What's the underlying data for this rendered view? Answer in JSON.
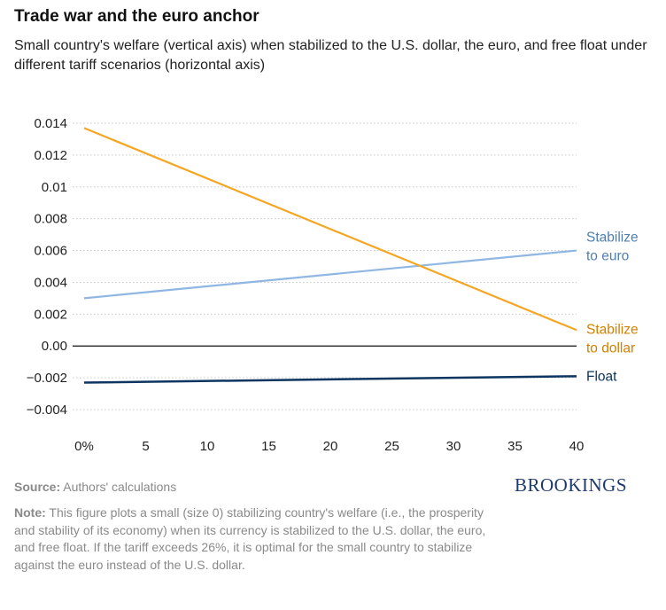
{
  "title": "Trade war and the euro anchor",
  "subtitle": "Small country's welfare (vertical axis) when stabilized to the U.S. dollar, the euro, and free float under different tariff scenarios (horizontal axis)",
  "source": {
    "label": "Source:",
    "text": " Authors' calculations"
  },
  "note": {
    "label": "Note:",
    "text": " This figure plots a small (size 0) stabilizing country's welfare (i.e., the prosperity and stability of its economy) when its currency is stabilized to the U.S. dollar, the euro, and free float. If the tariff exceeds 26%, it is optimal for the small country to stabilize against the euro instead of the U.S. dollar."
  },
  "logo": "BROOKINGS",
  "chart_data": {
    "type": "line",
    "title": "Trade war and the euro anchor",
    "x": [
      0,
      40
    ],
    "xticks": [
      0,
      5,
      10,
      15,
      20,
      25,
      30,
      35,
      40
    ],
    "xtick_labels": [
      "0%",
      "5",
      "10",
      "15",
      "20",
      "25",
      "30",
      "35",
      "40"
    ],
    "xlim": [
      0,
      40
    ],
    "ylim": [
      -0.004,
      0.014
    ],
    "yticks": [
      0.014,
      0.012,
      0.01,
      0.008,
      0.006,
      0.004,
      0.002,
      0.0,
      -0.002,
      -0.004
    ],
    "ytick_labels": [
      "0.014",
      "0.012",
      "0.01",
      "0.008",
      "0.006",
      "0.004",
      "0.002",
      "0.00",
      "−0.002",
      "−0.004"
    ],
    "grid": true,
    "legend": "direct labels at right end of lines",
    "series": [
      {
        "name": "Stabilize to euro",
        "label_lines": [
          "Stabilize",
          "to euro"
        ],
        "color": "#8fb7e2",
        "label_color": "#4f7fb0",
        "values": [
          0.003,
          0.006
        ]
      },
      {
        "name": "Stabilize to dollar",
        "label_lines": [
          "Stabilize",
          "to dollar"
        ],
        "color": "#f5a623",
        "label_color": "#d47f00",
        "values": [
          0.0137,
          0.001
        ]
      },
      {
        "name": "Float",
        "label_lines": [
          "Float"
        ],
        "color": "#0d3561",
        "label_color": "#0d3561",
        "values": [
          -0.0023,
          -0.0019
        ]
      }
    ]
  }
}
